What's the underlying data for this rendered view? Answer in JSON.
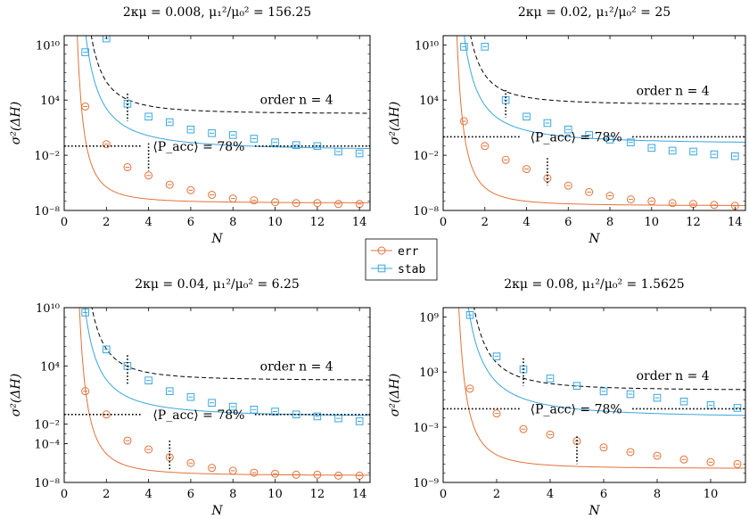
{
  "colors": {
    "err": "#e0733a",
    "stab": "#3aa6dc",
    "ref": "#000000"
  },
  "legend": {
    "items": [
      {
        "label": "err",
        "series": "err"
      },
      {
        "label": "stab",
        "series": "stab"
      }
    ]
  },
  "chart_data": [
    {
      "type": "line",
      "title": "2κμ = 0.008,    μ₁²/μ₀² = 156.25",
      "xlabel": "N",
      "ylabel": "σ²(ΔH)",
      "xlim": [
        0,
        14.5
      ],
      "ylog": [
        -8,
        11
      ],
      "xticks": [
        0,
        2,
        4,
        6,
        8,
        10,
        12,
        14
      ],
      "yticks": [
        {
          "exp": -8,
          "label": "10⁻⁸"
        },
        {
          "exp": -2,
          "label": "10⁻²"
        },
        {
          "exp": 4,
          "label": "10⁴"
        },
        {
          "exp": 10,
          "label": "10¹⁰"
        }
      ],
      "ref_exp": -1,
      "ref_label": "⟨P_acc⟩ = 78%",
      "order_label": "order n = 4",
      "err_a": 7,
      "err_k": 4,
      "err_c": -7.2,
      "stab_a": 13,
      "stab_k": 3,
      "stab_c": -1.5,
      "order_a": 14,
      "order_k": 4,
      "order_c": 2.5,
      "markers": {
        "err": 3,
        "stab": 3
      },
      "vlines": [
        {
          "x": 3,
          "center": 3.2
        },
        {
          "x": 4,
          "center": -2.2
        }
      ],
      "series": [
        {
          "name": "err",
          "x": [
            1,
            2,
            3,
            4,
            5,
            6,
            7,
            8,
            9,
            10,
            11,
            12,
            13,
            14
          ],
          "log10_y": [
            3.3,
            -0.8,
            -3.3,
            -4.2,
            -5.2,
            -5.8,
            -6.3,
            -6.7,
            -6.9,
            -7.1,
            -7.2,
            -7.2,
            -7.3,
            -7.3
          ]
        },
        {
          "name": "stab",
          "x": [
            1,
            2,
            3,
            4,
            5,
            6,
            7,
            8,
            9,
            10,
            11,
            12,
            13,
            14
          ],
          "log10_y": [
            9.2,
            10.7,
            3.6,
            2.2,
            1.6,
            0.8,
            0.4,
            0.2,
            -0.2,
            -0.6,
            -0.9,
            -1.0,
            -1.6,
            -1.8
          ]
        }
      ]
    },
    {
      "type": "line",
      "title": "2κμ = 0.02,    μ₁²/μ₀² = 25",
      "xlabel": "N",
      "ylabel": "σ²(ΔH)",
      "xlim": [
        0,
        14.5
      ],
      "ylog": [
        -8,
        11
      ],
      "xticks": [
        0,
        2,
        4,
        6,
        8,
        10,
        12,
        14
      ],
      "yticks": [
        {
          "exp": -8,
          "label": "10⁻⁸"
        },
        {
          "exp": -2,
          "label": "10⁻²"
        },
        {
          "exp": 4,
          "label": "10⁴"
        },
        {
          "exp": 10,
          "label": "10¹⁰"
        }
      ],
      "ref_exp": 0,
      "ref_label": "⟨P_acc⟩ = 78%",
      "order_label": "order n = 4",
      "err_a": 8,
      "err_k": 4,
      "err_c": -7.5,
      "stab_a": 12,
      "stab_k": 3,
      "stab_c": -0.8,
      "order_a": 13,
      "order_k": 4,
      "order_c": 3.5,
      "markers": {
        "err": 1,
        "stab": 3
      },
      "vlines": [
        {
          "x": 3,
          "center": 3.6
        },
        {
          "x": 5,
          "center": -3.8
        }
      ],
      "series": [
        {
          "name": "err",
          "x": [
            1,
            2,
            3,
            4,
            5,
            6,
            7,
            8,
            9,
            10,
            11,
            12,
            13,
            14
          ],
          "log10_y": [
            1.7,
            -1.0,
            -2.5,
            -3.5,
            -4.5,
            -5.3,
            -6.0,
            -6.4,
            -6.8,
            -7.0,
            -7.2,
            -7.3,
            -7.4,
            -7.5
          ]
        },
        {
          "name": "stab",
          "x": [
            1,
            2,
            3,
            4,
            5,
            6,
            7,
            8,
            9,
            10,
            11,
            12,
            13,
            14
          ],
          "log10_y": [
            9.8,
            9.8,
            4.0,
            2.2,
            1.5,
            0.8,
            0.2,
            -0.3,
            -0.6,
            -1.2,
            -1.5,
            -1.6,
            -1.9,
            -2.1
          ]
        }
      ]
    },
    {
      "type": "line",
      "title": "2κμ = 0.04,    μ₁²/μ₀² = 6.25",
      "xlabel": "N",
      "ylabel": "σ²(ΔH)",
      "xlim": [
        0,
        14.5
      ],
      "ylog": [
        -8,
        10
      ],
      "xticks": [
        0,
        2,
        4,
        6,
        8,
        10,
        12,
        14
      ],
      "yticks": [
        {
          "exp": -8,
          "label": "10⁻⁸"
        },
        {
          "exp": -4,
          "label": "10⁻⁴"
        },
        {
          "exp": -2,
          "label": "10⁻²"
        },
        {
          "exp": 4,
          "label": "10⁴"
        },
        {
          "exp": 10,
          "label": "10¹⁰"
        }
      ],
      "ref_exp": -1,
      "ref_label": "⟨P_acc⟩ = 78%",
      "order_label": "order n = 4",
      "err_a": 9,
      "err_k": 4,
      "err_c": -7.3,
      "stab_a": 11,
      "stab_k": 3,
      "stab_c": -1.3,
      "order_a": 13,
      "order_k": 4,
      "order_c": 2.5,
      "markers": {
        "err": 1,
        "stab": 3
      },
      "vlines": [
        {
          "x": 3,
          "center": 3.6
        },
        {
          "x": 5,
          "center": -5.2
        }
      ],
      "series": [
        {
          "name": "err",
          "x": [
            1,
            2,
            3,
            4,
            5,
            6,
            7,
            8,
            9,
            10,
            11,
            12,
            13,
            14
          ],
          "log10_y": [
            1.4,
            -1.0,
            -3.7,
            -4.6,
            -5.4,
            -6.0,
            -6.5,
            -6.8,
            -7.0,
            -7.1,
            -7.2,
            -7.2,
            -7.3,
            -7.3
          ]
        },
        {
          "name": "stab",
          "x": [
            1,
            2,
            3,
            4,
            5,
            6,
            7,
            8,
            9,
            10,
            11,
            12,
            13,
            14
          ],
          "log10_y": [
            9.5,
            5.7,
            4.0,
            2.5,
            1.4,
            0.8,
            0.2,
            -0.2,
            -0.5,
            -0.7,
            -1.0,
            -1.2,
            -1.4,
            -1.7
          ]
        }
      ]
    },
    {
      "type": "line",
      "title": "2κμ = 0.08,    μ₁²/μ₀² = 1.5625",
      "xlabel": "N",
      "ylabel": "σ²(ΔH)",
      "xlim": [
        0,
        11.3
      ],
      "ylog": [
        -9,
        10
      ],
      "xticks": [
        0,
        2,
        4,
        6,
        8,
        10
      ],
      "yticks": [
        {
          "exp": -9,
          "label": "10⁻⁹"
        },
        {
          "exp": -3,
          "label": "10⁻³"
        },
        {
          "exp": 3,
          "label": "10³"
        },
        {
          "exp": 9,
          "label": "10⁹"
        }
      ],
      "ref_exp": -1,
      "ref_label": "⟨P_acc⟩ = 78%",
      "order_label": "order n = 4",
      "err_a": 6,
      "err_k": 4,
      "err_c": -7.5,
      "stab_a": 11,
      "stab_k": 3,
      "stab_c": -2.0,
      "order_a": 12,
      "order_k": 4,
      "order_c": 1.0,
      "markers": {
        "err": 2,
        "stab": 3
      },
      "vlines": [
        {
          "x": 3,
          "center": 3.0
        },
        {
          "x": 5,
          "center": -5.5
        }
      ],
      "series": [
        {
          "name": "err",
          "x": [
            1,
            2,
            3,
            4,
            5,
            6,
            7,
            8,
            9,
            10,
            11
          ],
          "log10_y": [
            1.2,
            -1.5,
            -3.2,
            -3.8,
            -4.5,
            -5.2,
            -5.7,
            -6.1,
            -6.5,
            -6.8,
            -7.0
          ]
        },
        {
          "name": "stab",
          "x": [
            1,
            2,
            3,
            4,
            5,
            6,
            7,
            8,
            9,
            10,
            11
          ],
          "log10_y": [
            9.2,
            4.7,
            3.3,
            2.3,
            1.5,
            0.9,
            0.6,
            0.2,
            -0.2,
            -0.6,
            -0.9
          ]
        }
      ]
    }
  ]
}
